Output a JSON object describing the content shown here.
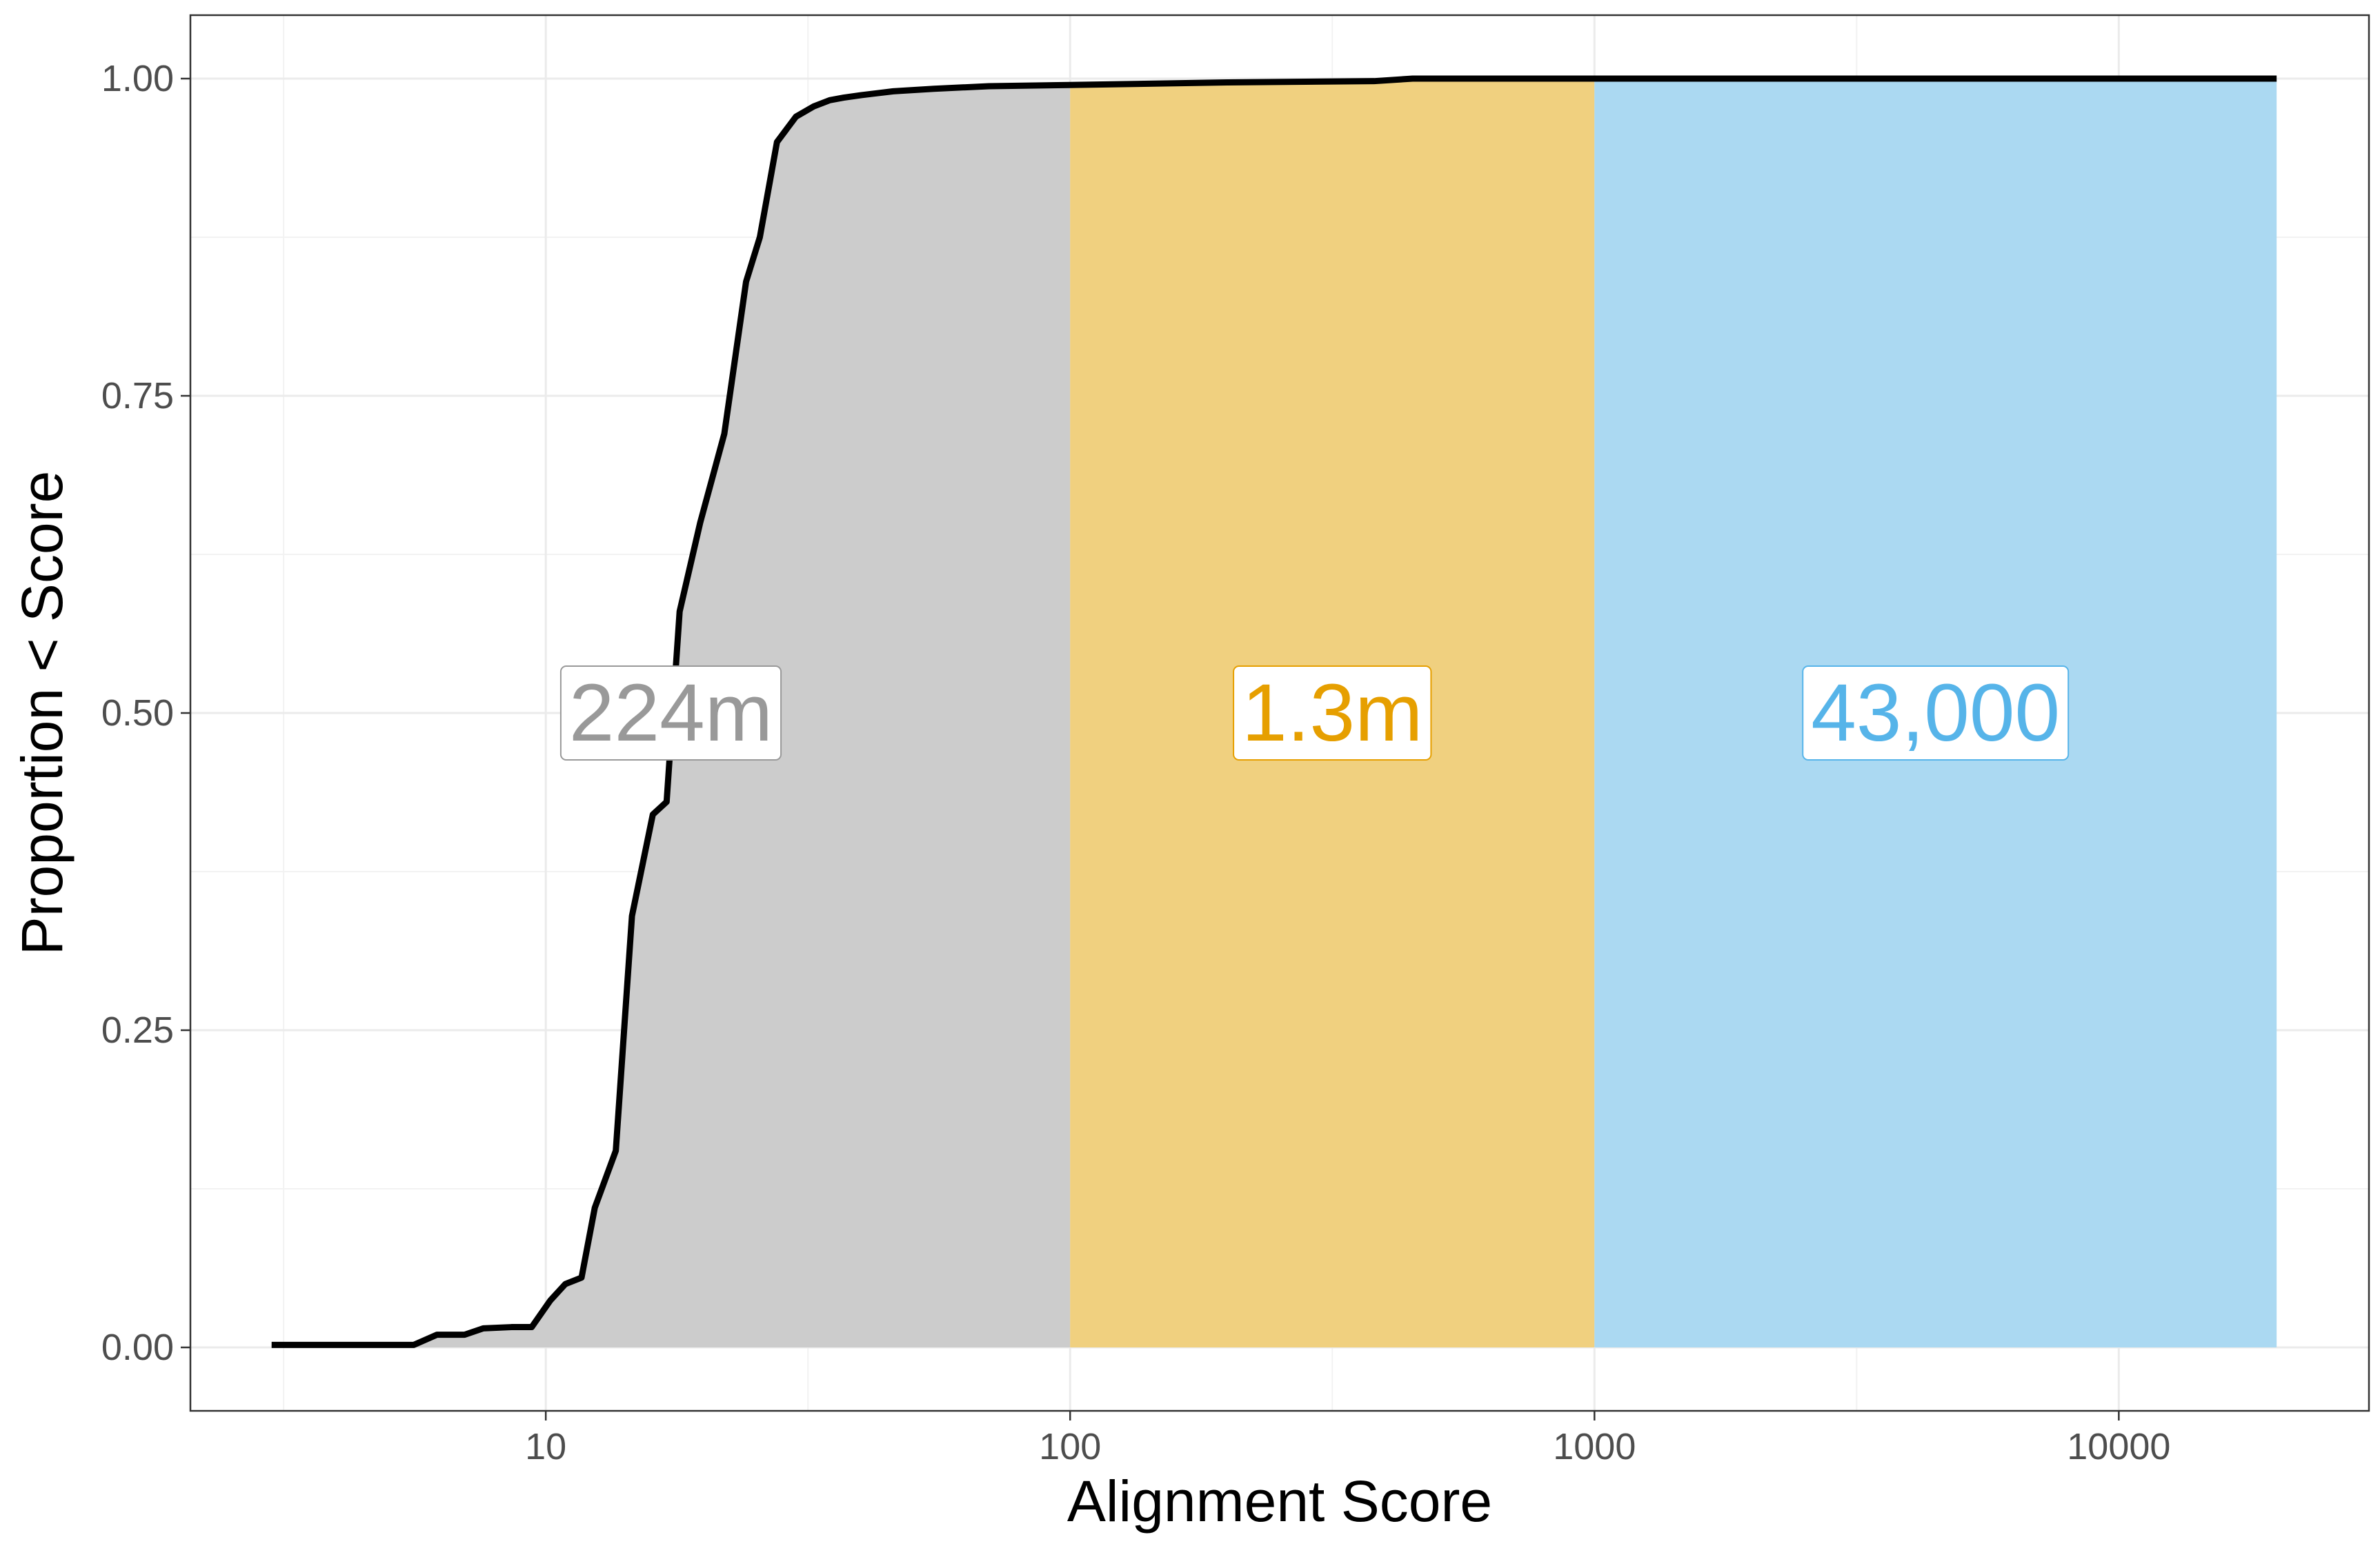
{
  "chart_data": {
    "type": "area",
    "xlabel": "Alignment Score",
    "ylabel": "Proportion < Score",
    "x_scale": "log10",
    "xlim": [
      2.1,
      30000
    ],
    "ylim": [
      -0.05,
      1.05
    ],
    "x_ticks": [
      10,
      100,
      1000,
      10000
    ],
    "x_tick_labels": [
      "10",
      "100",
      "1000",
      "10000"
    ],
    "y_ticks": [
      0,
      0.25,
      0.5,
      0.75,
      1
    ],
    "y_tick_labels": [
      "0.00",
      "0.25",
      "0.50",
      "0.75",
      "1.00"
    ],
    "grid": true,
    "legend": "none",
    "regions": [
      {
        "label": "224m",
        "x_start": 3,
        "x_end": 100,
        "fill": "#cccccc",
        "text_color": "#999999"
      },
      {
        "label": "1.3m",
        "x_start": 100,
        "x_end": 1000,
        "fill": "#f0d07f",
        "text_color": "#e69f00"
      },
      {
        "label": "43,000",
        "x_start": 1000,
        "x_end": 20000,
        "fill": "#abd9f2",
        "text_color": "#56b4e9"
      }
    ],
    "series": [
      {
        "type": "line",
        "color": "#000000",
        "x": [
          3,
          5.6,
          6.2,
          7,
          7.6,
          8.6,
          9.4,
          10.2,
          10.9,
          11.7,
          12.4,
          13.6,
          14.6,
          16,
          17,
          18,
          19.7,
          21.9,
          24.1,
          25.6,
          27.6,
          30,
          32.4,
          34.8,
          37,
          40,
          46,
          55,
          70,
          100,
          200,
          380,
          450,
          1000,
          5000,
          20000
        ],
        "y": [
          0.002,
          0.002,
          0.01,
          0.01,
          0.015,
          0.016,
          0.016,
          0.037,
          0.05,
          0.055,
          0.11,
          0.155,
          0.34,
          0.42,
          0.43,
          0.58,
          0.65,
          0.72,
          0.84,
          0.875,
          0.95,
          0.97,
          0.978,
          0.983,
          0.985,
          0.987,
          0.99,
          0.992,
          0.994,
          0.995,
          0.997,
          0.998,
          1.0,
          1.0,
          1.0,
          1.0
        ]
      }
    ]
  }
}
